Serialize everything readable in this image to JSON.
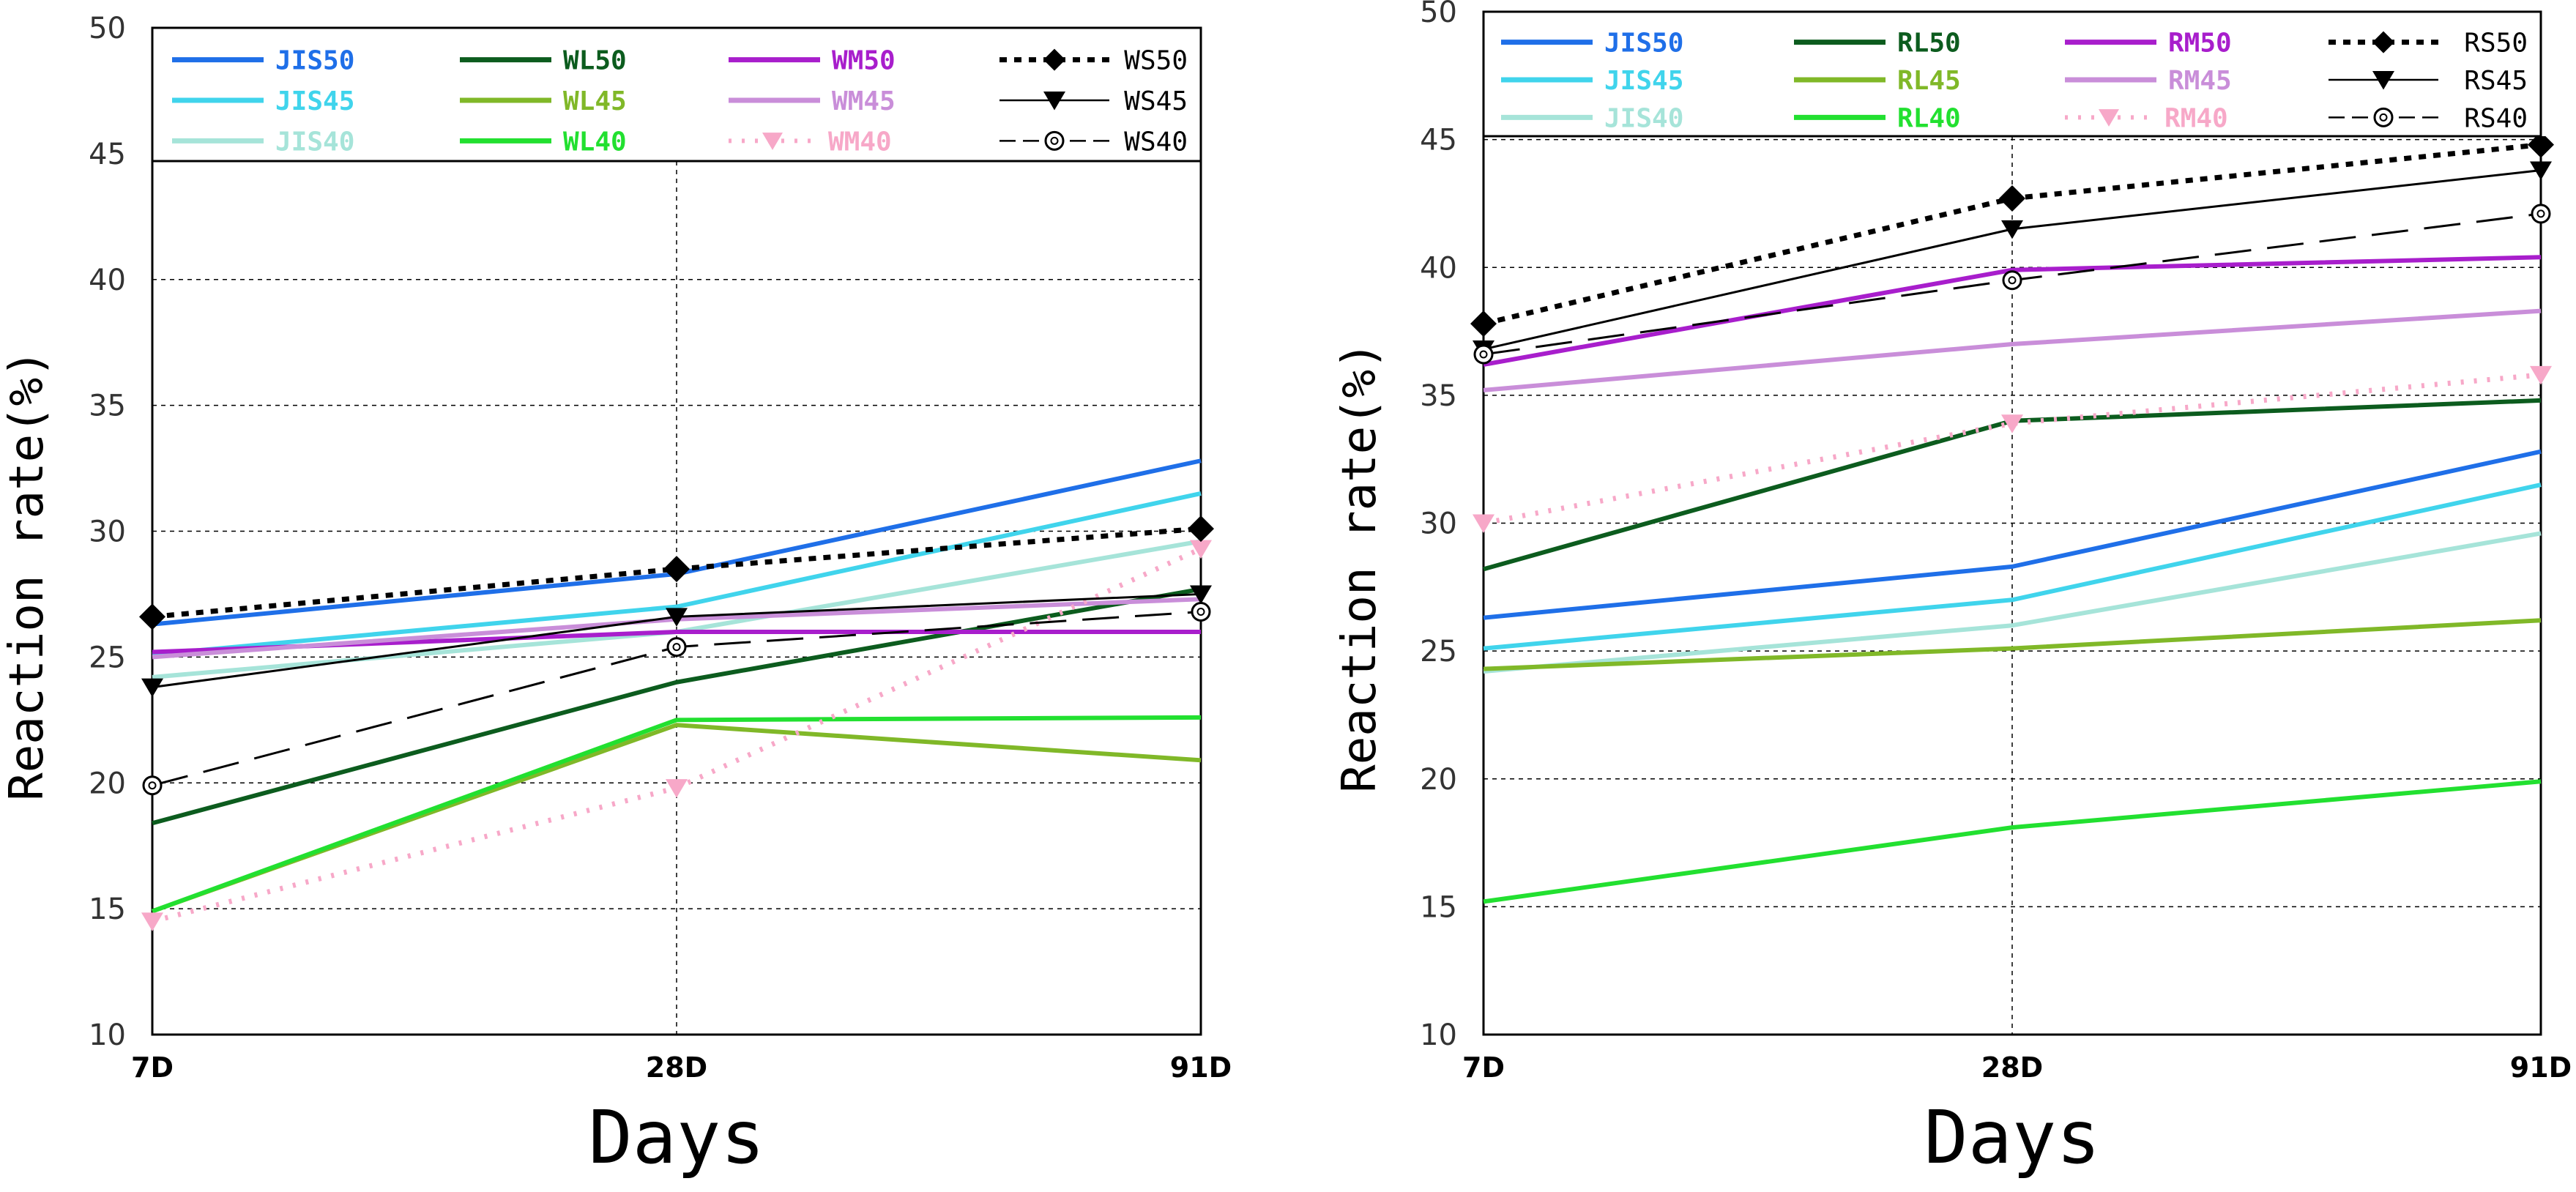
{
  "chart_data": [
    {
      "type": "line",
      "title": "",
      "xlabel": "Days",
      "ylabel": "Reaction rate(%)",
      "categories": [
        "7D",
        "28D",
        "91D"
      ],
      "ylim": [
        10,
        50
      ],
      "yticks": [
        10,
        15,
        20,
        25,
        30,
        35,
        40,
        45,
        50
      ],
      "grid": true,
      "legend": "top",
      "series": [
        {
          "name": "JIS50",
          "color": "#1f6fe8",
          "values": [
            26.3,
            28.3,
            32.8
          ],
          "dash": "",
          "marker": ""
        },
        {
          "name": "JIS45",
          "color": "#40d4ec",
          "values": [
            25.1,
            27.0,
            31.5
          ],
          "dash": "",
          "marker": ""
        },
        {
          "name": "JIS40",
          "color": "#a6e4d9",
          "values": [
            24.2,
            26.0,
            29.6
          ],
          "dash": "",
          "marker": ""
        },
        {
          "name": "WL50",
          "color": "#0c5c1e",
          "values": [
            18.4,
            24.0,
            27.7
          ],
          "dash": "",
          "marker": ""
        },
        {
          "name": "WL45",
          "color": "#80b828",
          "values": [
            14.9,
            22.3,
            20.9
          ],
          "dash": "",
          "marker": ""
        },
        {
          "name": "WL40",
          "color": "#22e030",
          "values": [
            14.9,
            22.5,
            22.6
          ],
          "dash": "",
          "marker": ""
        },
        {
          "name": "WM50",
          "color": "#a81ecc",
          "values": [
            25.2,
            26.0,
            26.0
          ],
          "dash": "",
          "marker": ""
        },
        {
          "name": "WM45",
          "color": "#c98ed9",
          "values": [
            25.0,
            26.5,
            27.3
          ],
          "dash": "",
          "marker": ""
        },
        {
          "name": "WM40",
          "color": "#f7a8c8",
          "values": [
            14.5,
            19.8,
            29.3
          ],
          "dash": "4 14",
          "marker": "triangle-down-filled"
        },
        {
          "name": "WS50",
          "color": "#000000",
          "values": [
            26.6,
            28.5,
            30.1
          ],
          "dash": "10 10",
          "marker": "diamond"
        },
        {
          "name": "WS45",
          "color": "#000000",
          "values": [
            23.8,
            26.6,
            27.5
          ],
          "dash": "",
          "marker": "triangle-down"
        },
        {
          "name": "WS40",
          "color": "#000000",
          "values": [
            19.9,
            25.4,
            26.8
          ],
          "dash": "50 22",
          "marker": "circle-open"
        }
      ]
    },
    {
      "type": "line",
      "title": "",
      "xlabel": "Days",
      "ylabel": "Reaction rate(%)",
      "categories": [
        "7D",
        "28D",
        "91D"
      ],
      "ylim": [
        10,
        50
      ],
      "yticks": [
        10,
        15,
        20,
        25,
        30,
        35,
        40,
        45,
        50
      ],
      "grid": true,
      "legend": "top",
      "series": [
        {
          "name": "JIS50",
          "color": "#1f6fe8",
          "values": [
            26.3,
            28.3,
            32.8
          ],
          "dash": "",
          "marker": ""
        },
        {
          "name": "JIS45",
          "color": "#40d4ec",
          "values": [
            25.1,
            27.0,
            31.5
          ],
          "dash": "",
          "marker": ""
        },
        {
          "name": "JIS40",
          "color": "#a6e4d9",
          "values": [
            24.2,
            26.0,
            29.6
          ],
          "dash": "",
          "marker": ""
        },
        {
          "name": "RL50",
          "color": "#0c5c1e",
          "values": [
            28.2,
            34.0,
            34.8
          ],
          "dash": "",
          "marker": ""
        },
        {
          "name": "RL45",
          "color": "#80b828",
          "values": [
            24.3,
            25.1,
            26.2
          ],
          "dash": "",
          "marker": ""
        },
        {
          "name": "RL40",
          "color": "#22e030",
          "values": [
            15.2,
            18.1,
            19.9
          ],
          "dash": "",
          "marker": ""
        },
        {
          "name": "RM50",
          "color": "#a81ecc",
          "values": [
            36.2,
            39.9,
            40.4
          ],
          "dash": "",
          "marker": ""
        },
        {
          "name": "RM45",
          "color": "#c98ed9",
          "values": [
            35.2,
            37.0,
            38.3
          ],
          "dash": "",
          "marker": ""
        },
        {
          "name": "RM40",
          "color": "#f7a8c8",
          "values": [
            30.0,
            33.9,
            35.8
          ],
          "dash": "4 14",
          "marker": "triangle-down-filled"
        },
        {
          "name": "RS50",
          "color": "#000000",
          "values": [
            37.8,
            42.7,
            44.8
          ],
          "dash": "10 10",
          "marker": "diamond"
        },
        {
          "name": "RS45",
          "color": "#000000",
          "values": [
            36.8,
            41.5,
            43.8
          ],
          "dash": "",
          "marker": "triangle-down"
        },
        {
          "name": "RS40",
          "color": "#000000",
          "values": [
            36.6,
            39.5,
            42.1
          ],
          "dash": "50 22",
          "marker": "circle-open"
        }
      ]
    }
  ]
}
